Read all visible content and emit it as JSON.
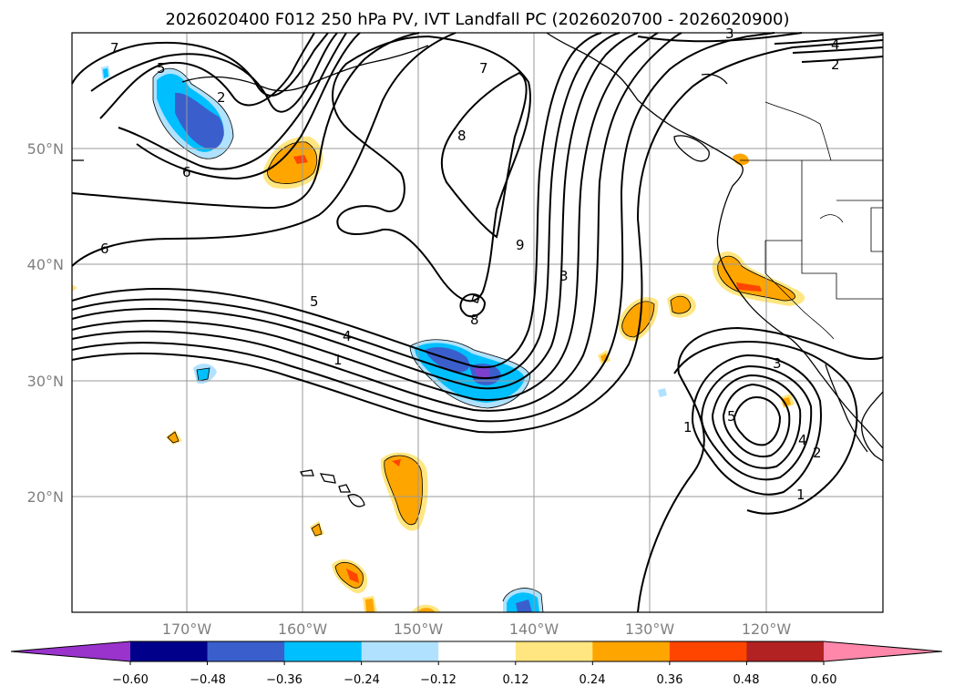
{
  "title": "2026020400 F012 250 hPa PV, IVT Landfall PC (2026020700 - 2026020900)",
  "map": {
    "lat_labels": [
      "50°N",
      "40°N",
      "30°N",
      "20°N"
    ],
    "lon_labels": [
      "170°W",
      "160°W",
      "150°W",
      "140°W",
      "130°W",
      "120°W"
    ]
  },
  "contour_labels": [
    "7",
    "5",
    "2",
    "6",
    "6",
    "7",
    "8",
    "9",
    "3",
    "8",
    "5",
    "4",
    "1",
    "3",
    "4",
    "2",
    "1",
    "1",
    "3",
    "5",
    "4",
    "2"
  ],
  "colorbar": {
    "ticks": [
      "−0.60",
      "−0.48",
      "−0.36",
      "−0.24",
      "−0.12",
      "0.12",
      "0.24",
      "0.36",
      "0.48",
      "0.60"
    ],
    "colors": [
      "#9933cc",
      "#00008b",
      "#3a5fcd",
      "#00bfff",
      "#b0e2ff",
      "#ffffff",
      "#ffe680",
      "#ffa500",
      "#ff4500",
      "#b22222",
      "#ff88aa"
    ]
  }
}
